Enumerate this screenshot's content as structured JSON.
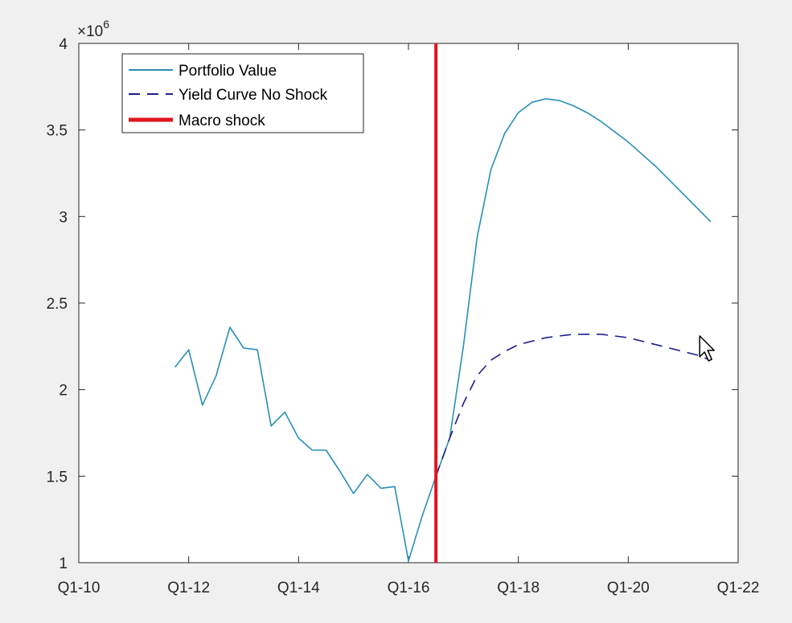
{
  "chart_data": {
    "type": "line",
    "xlabel": "",
    "ylabel": "",
    "y_multiplier_base": "×10",
    "y_multiplier_exp": "6",
    "xlim": [
      2010.0,
      2022.0
    ],
    "ylim": [
      1.0,
      4.0
    ],
    "x_ticks": [
      2010,
      2012,
      2014,
      2016,
      2018,
      2020,
      2022
    ],
    "x_tick_labels": [
      "Q1-10",
      "Q1-12",
      "Q1-14",
      "Q1-16",
      "Q1-18",
      "Q1-20",
      "Q1-22"
    ],
    "y_ticks": [
      1,
      1.5,
      2,
      2.5,
      3,
      3.5,
      4
    ],
    "y_tick_labels": [
      "1",
      "1.5",
      "2",
      "2.5",
      "3",
      "3.5",
      "4"
    ],
    "grid": false,
    "legend_position": "top-left",
    "series": [
      {
        "name": "Portfolio Value",
        "style": "solid",
        "color": "#2a8fb8",
        "x": [
          2011.75,
          2012.0,
          2012.25,
          2012.5,
          2012.75,
          2013.0,
          2013.25,
          2013.5,
          2013.75,
          2014.0,
          2014.25,
          2014.5,
          2014.75,
          2015.0,
          2015.25,
          2015.5,
          2015.75,
          2016.0,
          2016.25,
          2016.5,
          2016.75,
          2017.0,
          2017.25,
          2017.5,
          2017.75,
          2018.0,
          2018.25,
          2018.5,
          2018.75,
          2019.0,
          2019.25,
          2019.5,
          2019.75,
          2020.0,
          2020.25,
          2020.5,
          2020.75,
          2021.0,
          2021.25,
          2021.5
        ],
        "y": [
          2.13,
          2.23,
          1.91,
          2.08,
          2.36,
          2.24,
          2.23,
          1.79,
          1.87,
          1.72,
          1.65,
          1.65,
          1.53,
          1.4,
          1.51,
          1.43,
          1.44,
          1.01,
          1.27,
          1.5,
          1.72,
          2.25,
          2.88,
          3.27,
          3.48,
          3.6,
          3.66,
          3.68,
          3.67,
          3.64,
          3.6,
          3.55,
          3.49,
          3.43,
          3.36,
          3.29,
          3.21,
          3.13,
          3.05,
          2.97
        ]
      },
      {
        "name": "Yield Curve No Shock",
        "style": "dashed",
        "color": "#1e1e8c",
        "x": [
          2016.5,
          2016.75,
          2017.0,
          2017.25,
          2017.5,
          2017.75,
          2018.0,
          2018.25,
          2018.5,
          2018.75,
          2019.0,
          2019.25,
          2019.5,
          2019.75,
          2020.0,
          2020.25,
          2020.5,
          2020.75,
          2021.0,
          2021.25,
          2021.5
        ],
        "y": [
          1.5,
          1.72,
          1.92,
          2.08,
          2.17,
          2.22,
          2.26,
          2.28,
          2.3,
          2.31,
          2.32,
          2.32,
          2.32,
          2.31,
          2.3,
          2.28,
          2.26,
          2.24,
          2.22,
          2.2,
          2.17
        ]
      },
      {
        "name": "Macro shock",
        "style": "vertical",
        "color": "#e0141e",
        "x_value": 2016.5
      }
    ]
  },
  "cursor": {
    "icon": "mouse-pointer-icon",
    "x_value": 2021.3,
    "y_value": 2.12
  }
}
